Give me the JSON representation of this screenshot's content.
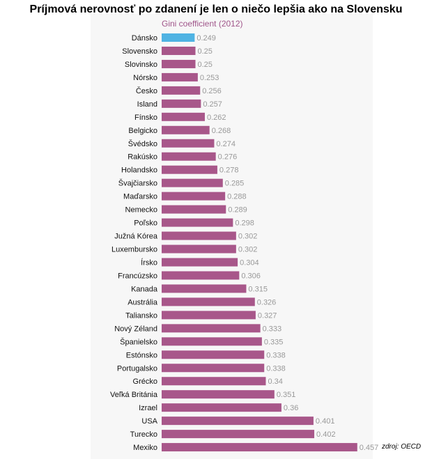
{
  "source": "zdroj: OECD",
  "chart_data": {
    "type": "bar",
    "orientation": "horizontal",
    "title": "Príjmová nerovnosť po zdanení je len o niečo lepšia ako na Slovensku",
    "subtitle": "Gini coefficient (2012)",
    "categories": [
      "Dánsko",
      "Slovensko",
      "Slovinsko",
      "Nórsko",
      "Česko",
      "Island",
      "Fínsko",
      "Belgicko",
      "Švédsko",
      "Rakúsko",
      "Holandsko",
      "Švajčiarsko",
      "Maďarsko",
      "Nemecko",
      "Poľsko",
      "Južná Kórea",
      "Luxembursko",
      "Írsko",
      "Francúzsko",
      "Kanada",
      "Austrália",
      "Taliansko",
      "Nový Zéland",
      "Španielsko",
      "Estónsko",
      "Portugalsko",
      "Grécko",
      "Veľká Británia",
      "Izrael",
      "USA",
      "Turecko",
      "Mexiko"
    ],
    "values": [
      0.249,
      0.25,
      0.25,
      0.253,
      0.256,
      0.257,
      0.262,
      0.268,
      0.274,
      0.276,
      0.278,
      0.285,
      0.288,
      0.289,
      0.298,
      0.302,
      0.302,
      0.304,
      0.306,
      0.315,
      0.326,
      0.327,
      0.333,
      0.335,
      0.338,
      0.338,
      0.34,
      0.351,
      0.36,
      0.401,
      0.402,
      0.457
    ],
    "value_labels": [
      "0.249",
      "0.25",
      "0.25",
      "0.253",
      "0.256",
      "0.257",
      "0.262",
      "0.268",
      "0.274",
      "0.276",
      "0.278",
      "0.285",
      "0.288",
      "0.289",
      "0.298",
      "0.302",
      "0.302",
      "0.304",
      "0.306",
      "0.315",
      "0.326",
      "0.327",
      "0.333",
      "0.335",
      "0.338",
      "0.338",
      "0.34",
      "0.351",
      "0.36",
      "0.401",
      "0.402",
      "0.457"
    ],
    "highlight_index": 0,
    "colors": {
      "bar": "#a8578a",
      "highlight": "#4fb3e3",
      "value_label": "#999999"
    }
  }
}
